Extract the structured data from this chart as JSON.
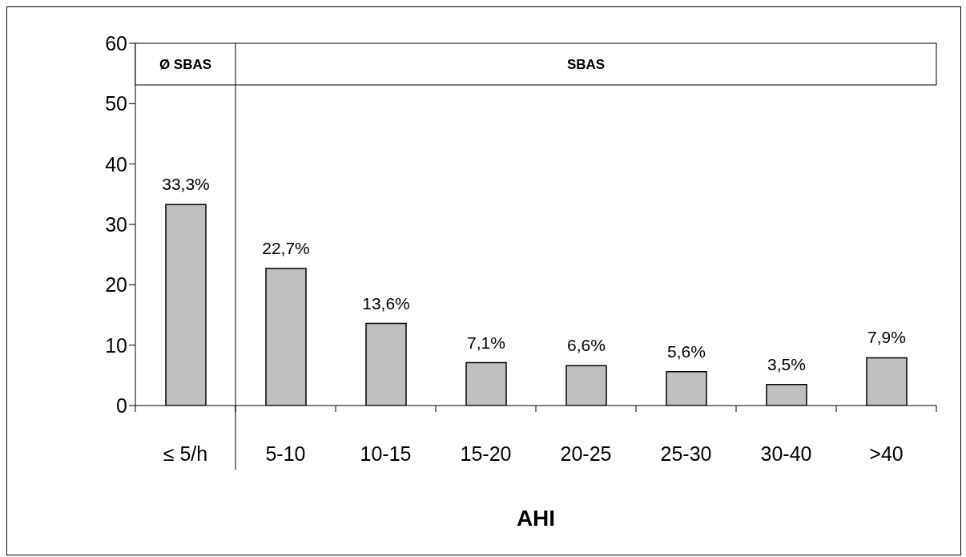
{
  "chart_data": {
    "type": "bar",
    "xlabel": "AHI",
    "categories": [
      "≤ 5/h",
      "5-10",
      "10-15",
      "15-20",
      "20-25",
      "25-30",
      "30-40",
      ">40"
    ],
    "values": [
      33.3,
      22.7,
      13.6,
      7.1,
      6.6,
      5.6,
      3.5,
      7.9
    ],
    "value_labels": [
      "33,3%",
      "22,7%",
      "13,6%",
      "7,1%",
      "6,6%",
      "5,6%",
      "3,5%",
      "7,9%"
    ],
    "color": "#c0c0c0",
    "ylim": [
      0,
      60
    ],
    "yticks": [
      0,
      10,
      20,
      30,
      40,
      50,
      60
    ],
    "grid": false,
    "legend": false,
    "annotations": [
      "Ø SBAS",
      "SBAS"
    ]
  }
}
